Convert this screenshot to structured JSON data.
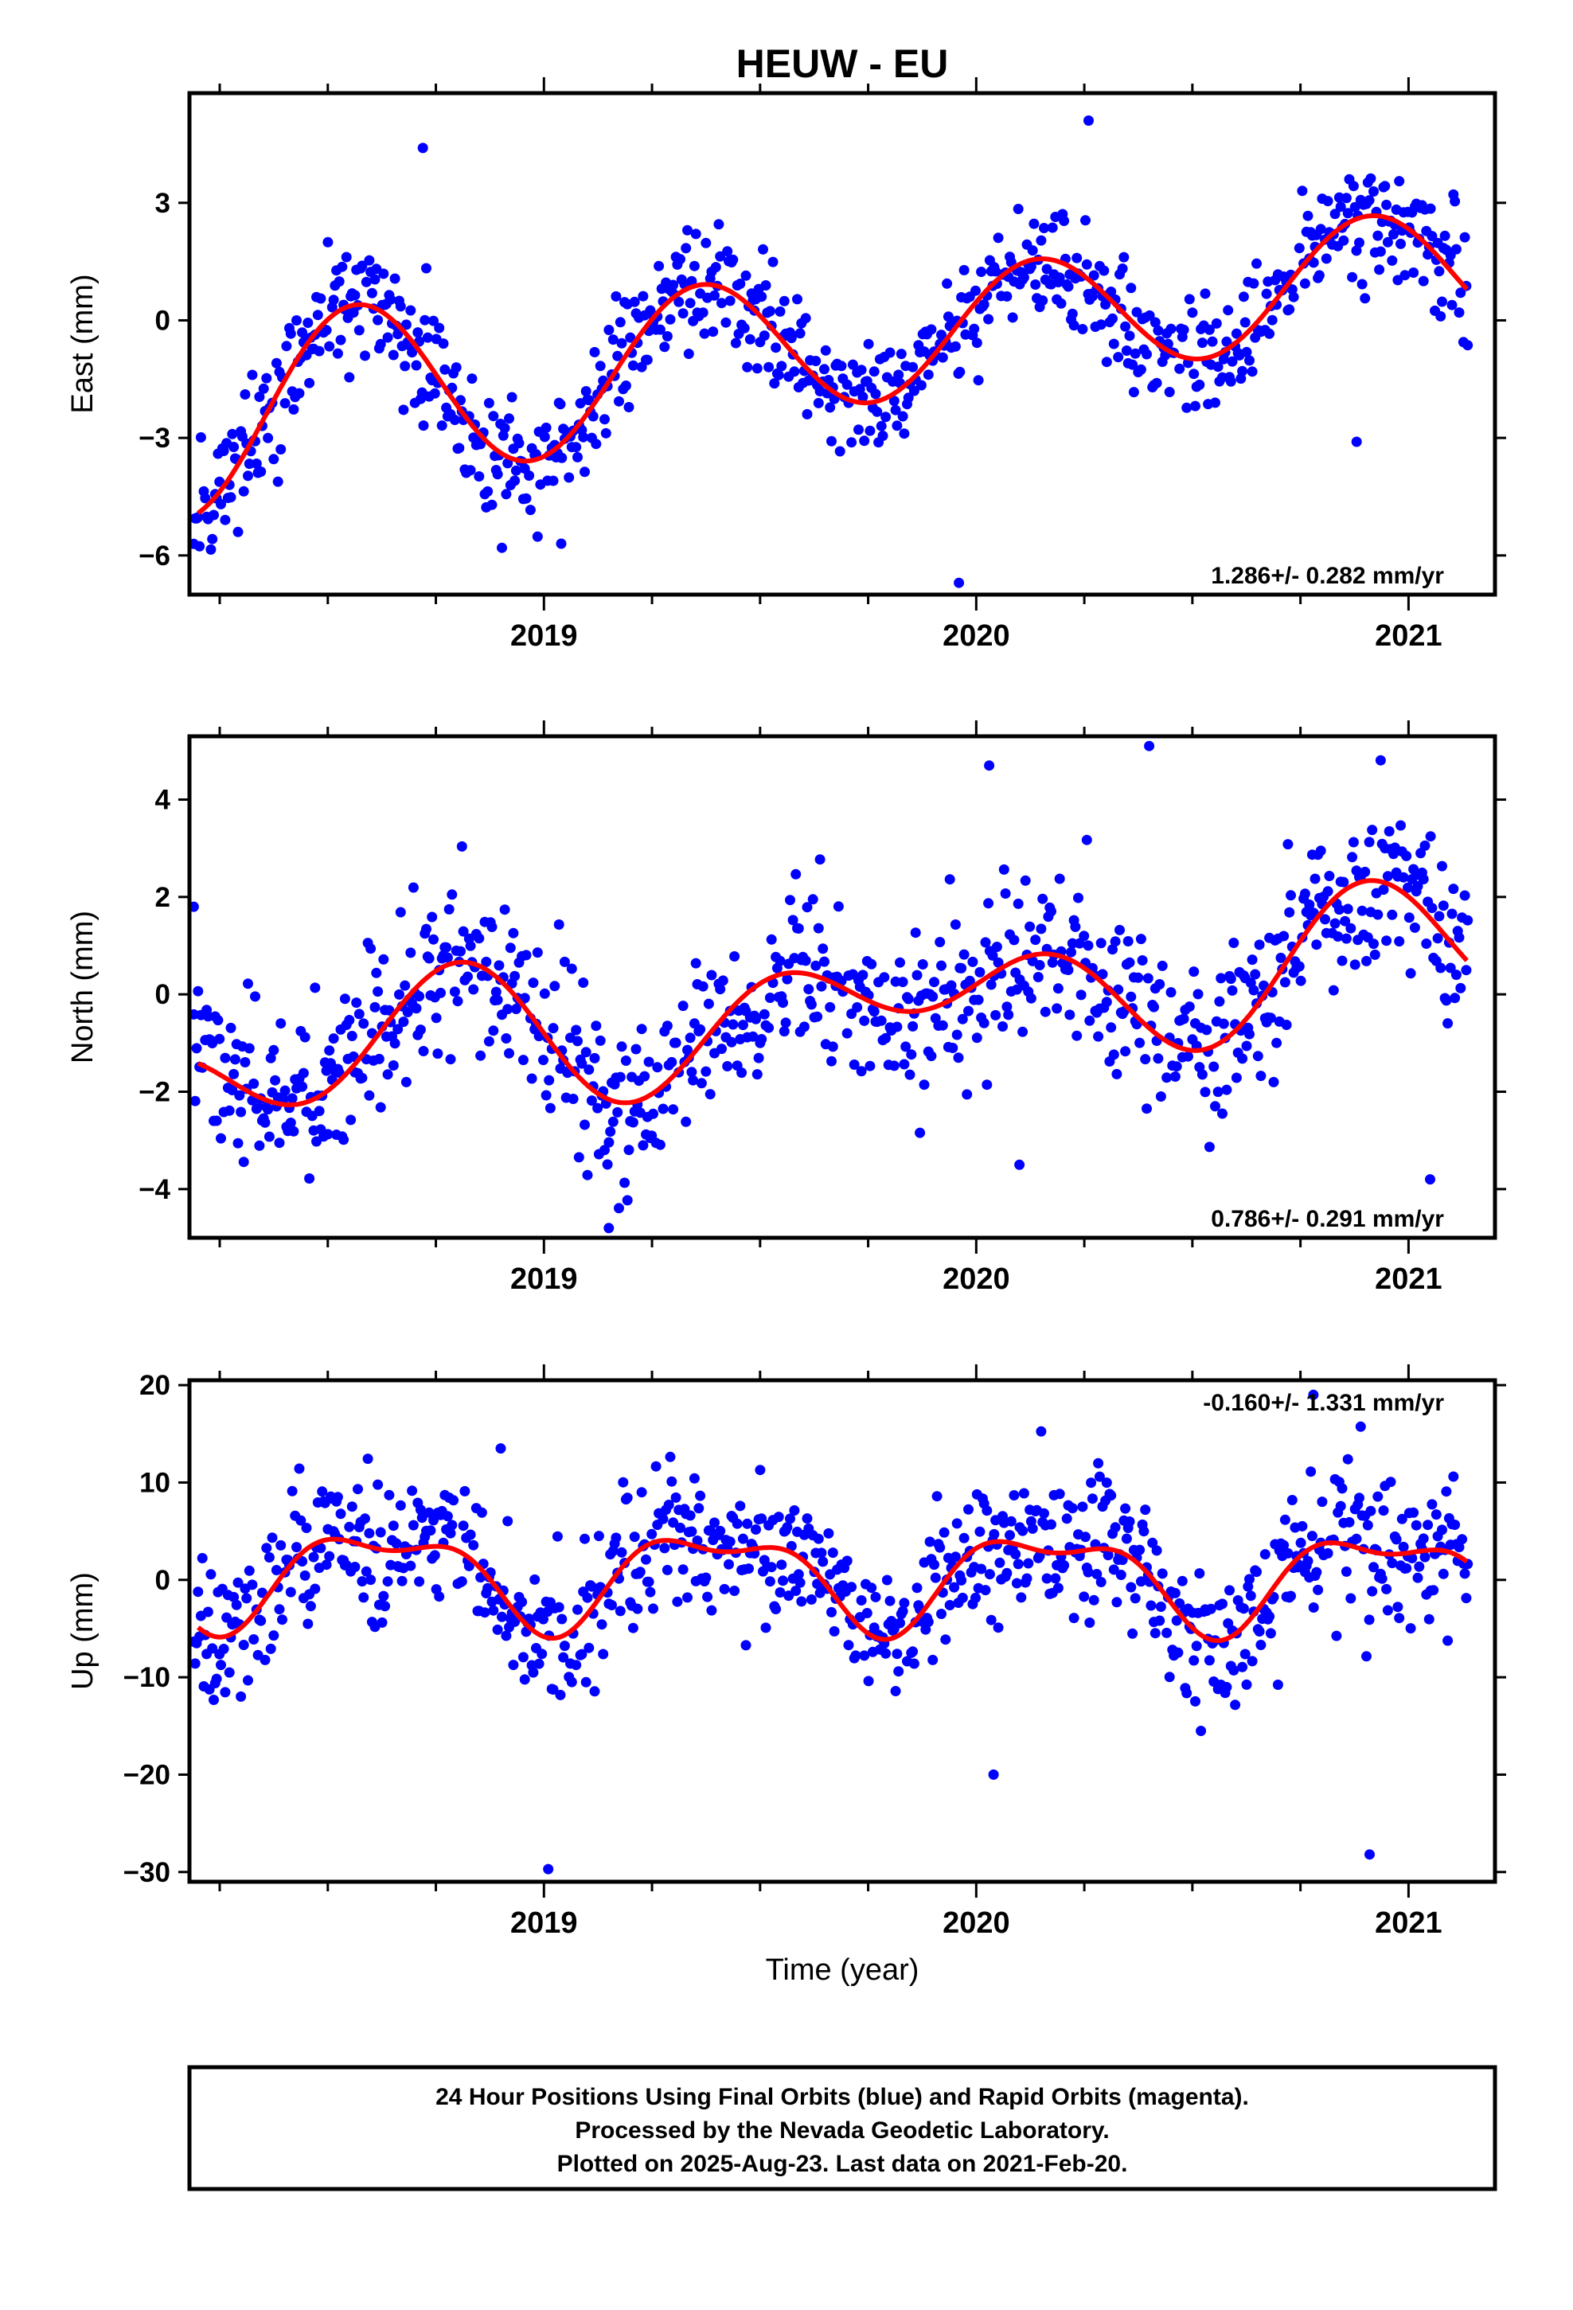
{
  "title": "HEUW - EU",
  "xlabel": "Time (year)",
  "footer": {
    "line1": "24 Hour Positions Using Final Orbits (blue) and Rapid Orbits (magenta).",
    "line2": "Processed by the Nevada Geodetic Laboratory.",
    "line3": "Plotted on 2025-Aug-23. Last data on 2021-Feb-20."
  },
  "colors": {
    "points": "#0000ff",
    "fit": "#ff0000",
    "frame": "#000000"
  },
  "chart_data": [
    {
      "type": "scatter",
      "ylabel": "East (mm)",
      "rate": "1.286+/- 0.282 mm/yr",
      "rate_position": "bottom-right",
      "xlim": [
        2018.18,
        2021.2
      ],
      "ylim": [
        -7.0,
        5.8
      ],
      "yticks": [
        -6,
        -3,
        0,
        3
      ],
      "xticks": [
        2019,
        2020,
        2021
      ],
      "xtick_labels": [
        "2019",
        "2020",
        "2021"
      ],
      "fit": {
        "rate": 1.286,
        "offset": -0.65,
        "harmonics": [
          [
            2.2,
            1.25,
            5.1
          ],
          [
            0.7,
            1.1,
            4.0
          ]
        ]
      },
      "point_scatter": 0.75,
      "outliers": [
        [
          2018.72,
          4.4
        ],
        [
          2019.96,
          -6.7
        ],
        [
          2020.26,
          5.1
        ],
        [
          2019.04,
          -5.7
        ],
        [
          2020.88,
          -3.1
        ]
      ]
    },
    {
      "type": "scatter",
      "ylabel": "North (mm)",
      "rate": "0.786+/- 0.291 mm/yr",
      "rate_position": "bottom-right",
      "xlim": [
        2018.18,
        2021.2
      ],
      "ylim": [
        -5.0,
        5.3
      ],
      "yticks": [
        -4,
        -2,
        0,
        2,
        4
      ],
      "xticks": [
        2019,
        2020,
        2021
      ],
      "xtick_labels": [
        "2019",
        "2020",
        "2021"
      ],
      "fit": {
        "rate": 0.786,
        "offset": -0.35,
        "harmonics": [
          [
            0.75,
            0.9,
            4.7
          ],
          [
            0.95,
            1.45,
            2.0
          ]
        ]
      },
      "point_scatter": 0.9,
      "outliers": [
        [
          2018.19,
          1.8
        ],
        [
          2020.03,
          4.7
        ],
        [
          2020.4,
          5.1
        ],
        [
          2019.15,
          -4.8
        ],
        [
          2021.05,
          -3.8
        ],
        [
          2020.1,
          -3.5
        ]
      ]
    },
    {
      "type": "scatter",
      "ylabel": "Up (mm)",
      "rate": "-0.160+/- 1.331 mm/yr",
      "rate_position": "top-right",
      "xlim": [
        2018.18,
        2021.2
      ],
      "ylim": [
        -31,
        20.5
      ],
      "yticks": [
        -30,
        -20,
        -10,
        0,
        10,
        20
      ],
      "xticks": [
        2019,
        2020,
        2021
      ],
      "xtick_labels": [
        "2019",
        "2020",
        "2021"
      ],
      "fit": {
        "rate": -0.16,
        "offset": 0.4,
        "harmonics": [
          [
            4.5,
            1.3,
            4.2
          ],
          [
            2.0,
            2.6,
            3.5
          ]
        ]
      },
      "point_scatter": 3.6,
      "outliers": [
        [
          2019.01,
          -29.7
        ],
        [
          2020.91,
          -28.2
        ],
        [
          2020.04,
          -20.0
        ],
        [
          2020.78,
          19.0
        ],
        [
          2018.9,
          13.5
        ]
      ]
    }
  ]
}
